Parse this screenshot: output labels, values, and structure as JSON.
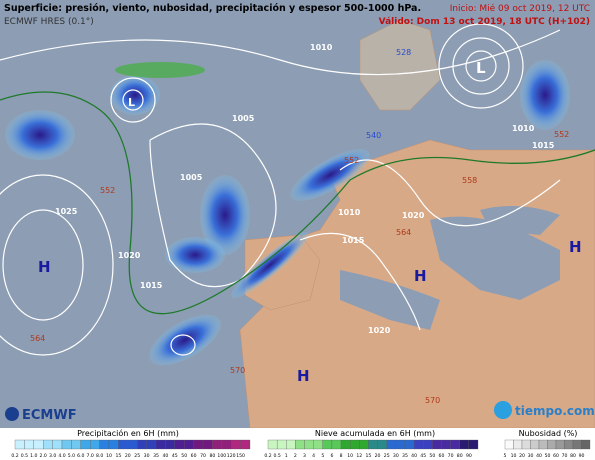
{
  "header": {
    "title": "Superficie: presión, viento, nubosidad, precipitación y espesor 500-1000 hPa.",
    "model": "ECMWF HRES (0.1°)",
    "start": "Inicio: Mié 09 oct 2019, 12 UTC",
    "valid": "Válido: Dom 13 oct 2019, 18 UTC (H+102)"
  },
  "map": {
    "pressure_centers": [
      "H",
      "H",
      "H",
      "H",
      "L",
      "L"
    ],
    "isobar_labels": [
      "1005",
      "1005",
      "1010",
      "1010",
      "1010",
      "1015",
      "1015",
      "1015",
      "1020",
      "1020",
      "1020",
      "1025"
    ],
    "thickness_labels": [
      "528",
      "540",
      "552",
      "552",
      "552",
      "558",
      "564",
      "564",
      "570",
      "570"
    ]
  },
  "footer": {
    "ecmwf": "ECMWF",
    "tiempo": "tiempo.com"
  },
  "legend": {
    "precipitation": {
      "title": "Precipitación en 6H (mm)",
      "ticks": [
        "0.2",
        "0.5",
        "1.0",
        "2.0",
        "3.0",
        "4.0",
        "5.0",
        "6.0",
        "7.0",
        "8.0",
        "10",
        "15",
        "20",
        "25",
        "30",
        "35",
        "40",
        "45",
        "50",
        "60",
        "70",
        "80",
        "100",
        "120",
        "150"
      ]
    },
    "snow": {
      "title": "Nieve acumulada en 6H (mm)",
      "ticks": [
        "0.2",
        "0.5",
        "1",
        "2",
        "3",
        "4",
        "5",
        "6",
        "8",
        "10",
        "12",
        "15",
        "20",
        "25",
        "30",
        "35",
        "40",
        "45",
        "50",
        "60",
        "70",
        "80",
        "90"
      ]
    },
    "cloud": {
      "title": "Nubosidad (%)",
      "ticks": [
        "5",
        "10",
        "20",
        "30",
        "40",
        "50",
        "60",
        "70",
        "80",
        "90"
      ]
    }
  }
}
